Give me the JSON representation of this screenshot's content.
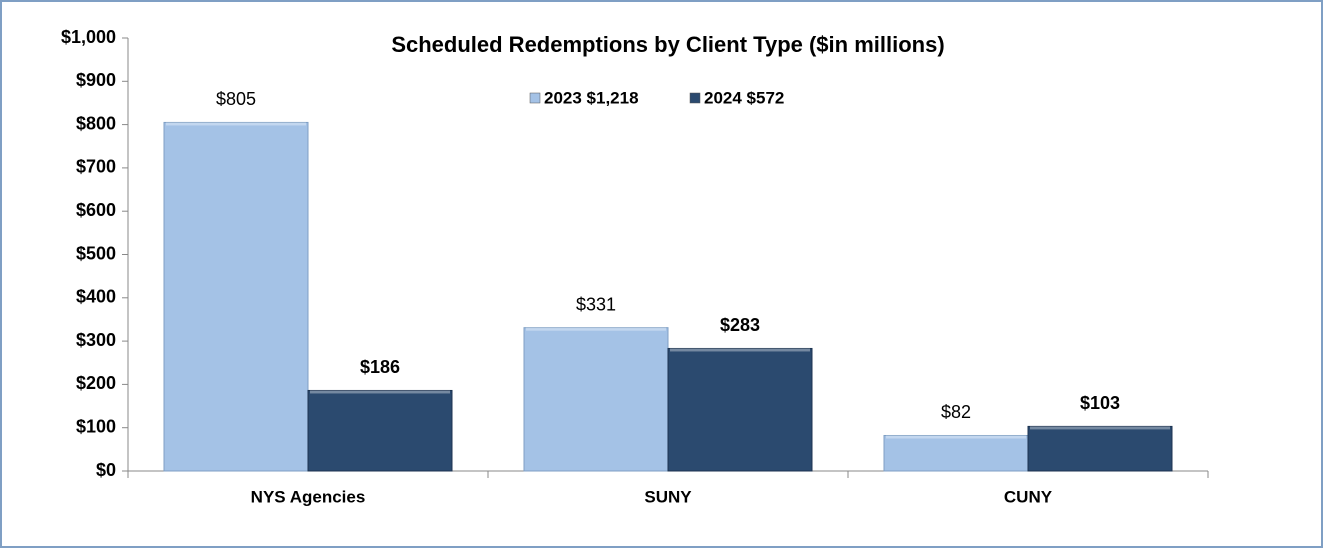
{
  "chart_data": {
    "type": "bar",
    "title": "Scheduled Redemptions by Client Type ($in millions)",
    "categories": [
      "NYS Agencies",
      "SUNY",
      "CUNY"
    ],
    "series": [
      {
        "name": "2023 $1,218",
        "color": "#a4c2e6",
        "values": [
          805,
          331,
          82
        ],
        "value_labels": [
          "$805",
          "$331",
          "$82"
        ]
      },
      {
        "name": "2024 $572",
        "color": "#2b4a6f",
        "values": [
          186,
          283,
          103
        ],
        "value_labels": [
          "$186",
          "$283",
          "$103"
        ]
      }
    ],
    "ylim": [
      0,
      1000
    ],
    "yticks": [
      {
        "value": 0,
        "label": "$0"
      },
      {
        "value": 100,
        "label": "$100"
      },
      {
        "value": 200,
        "label": "$200"
      },
      {
        "value": 300,
        "label": "$300"
      },
      {
        "value": 400,
        "label": "$400"
      },
      {
        "value": 500,
        "label": "$500"
      },
      {
        "value": 600,
        "label": "$600"
      },
      {
        "value": 700,
        "label": "$700"
      },
      {
        "value": 800,
        "label": "$800"
      },
      {
        "value": 900,
        "label": "$900"
      },
      {
        "value": 1000,
        "label": "$1,000"
      }
    ],
    "grid": false
  }
}
